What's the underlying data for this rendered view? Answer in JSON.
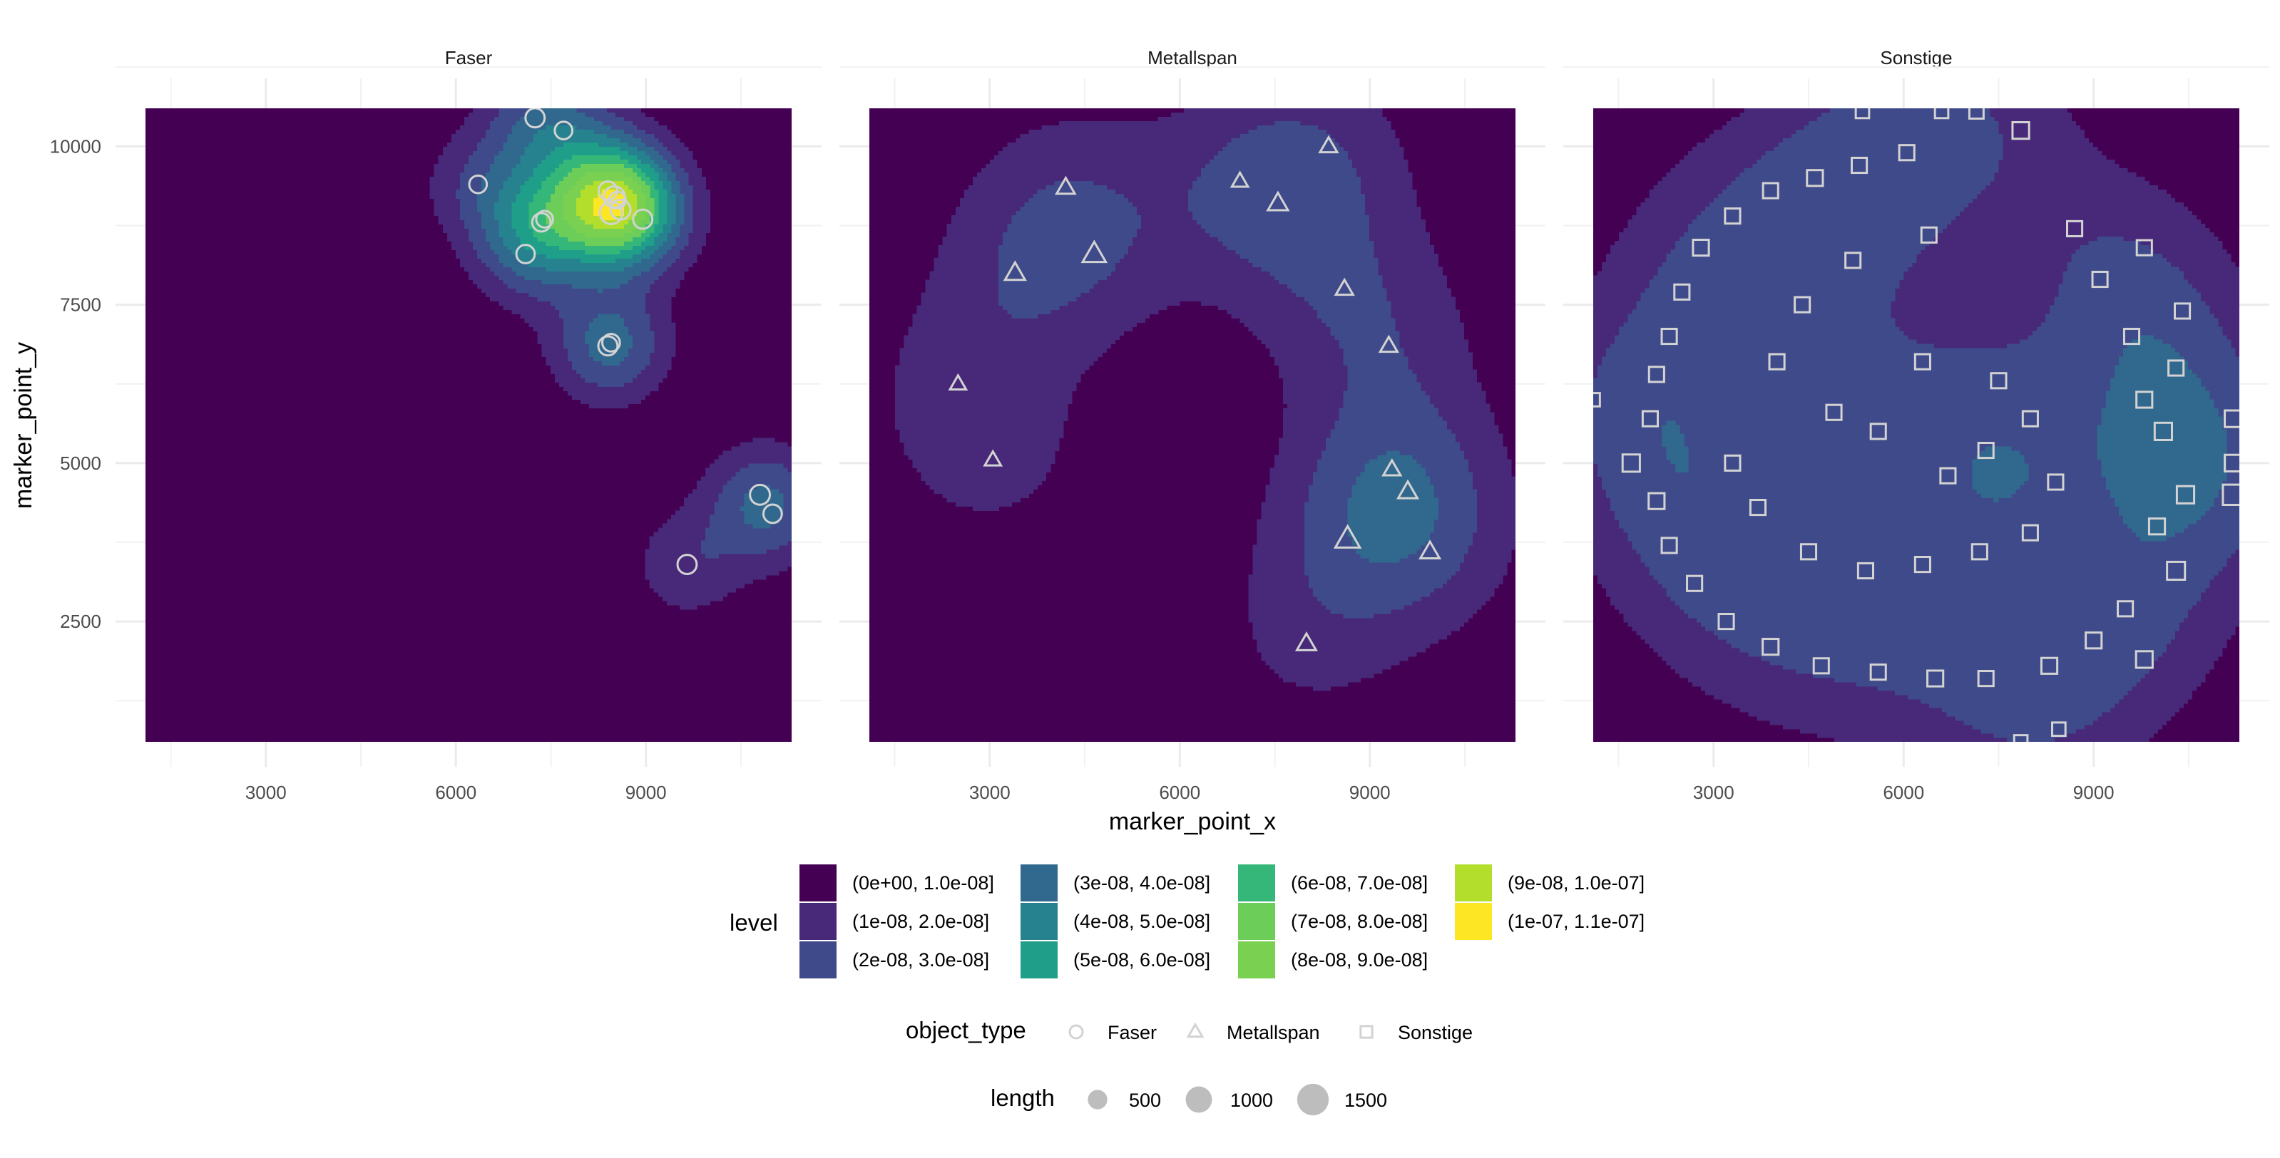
{
  "chart_data": {
    "type": "heatmap",
    "subtype": "faceted 2D density contour (filled) with point overlay",
    "x_label": "marker_point_x",
    "y_label": "marker_point_y",
    "xlim": [
      1100,
      11300
    ],
    "ylim": [
      600,
      10600
    ],
    "x_ticks": [
      3000,
      6000,
      9000
    ],
    "y_ticks": [
      2500,
      5000,
      7500,
      10000
    ],
    "x_tick_labels": [
      "3000",
      "6000",
      "9000"
    ],
    "y_tick_labels": [
      "2500",
      "5000",
      "7500",
      "10000"
    ],
    "grid": "on",
    "facets": [
      "Faser",
      "Metallspan",
      "Sonstige"
    ],
    "fill_legend": {
      "title": "level",
      "levels": [
        {
          "label": "(0e+00, 1.0e-08]",
          "color": "#440154"
        },
        {
          "label": "(1e-08, 2.0e-08]",
          "color": "#482878"
        },
        {
          "label": "(2e-08, 3.0e-08]",
          "color": "#3E4A89"
        },
        {
          "label": "(3e-08, 4.0e-08]",
          "color": "#31688E"
        },
        {
          "label": "(4e-08, 5.0e-08]",
          "color": "#26828E"
        },
        {
          "label": "(5e-08, 6.0e-08]",
          "color": "#1F9E89"
        },
        {
          "label": "(6e-08, 7.0e-08]",
          "color": "#35B779"
        },
        {
          "label": "(7e-08, 8.0e-08]",
          "color": "#6DCD59"
        },
        {
          "label": "(8e-08, 9.0e-08]",
          "color": "#7AD151"
        },
        {
          "label": "(9e-08, 1.0e-07]",
          "color": "#B4DE2C"
        },
        {
          "label": "(1e-07, 1.1e-07]",
          "color": "#FDE725"
        }
      ]
    },
    "shape_legend": {
      "title": "object_type",
      "items": [
        {
          "label": "Faser",
          "shape": "circle"
        },
        {
          "label": "Metallspan",
          "shape": "triangle"
        },
        {
          "label": "Sonstige",
          "shape": "square"
        }
      ]
    },
    "size_legend": {
      "title": "length",
      "items": [
        {
          "label": "500",
          "value": 500
        },
        {
          "label": "1000",
          "value": 1000
        },
        {
          "label": "1500",
          "value": 1500
        }
      ]
    },
    "panels": [
      {
        "facet": "Faser",
        "shape": "circle",
        "points": [
          {
            "x": 7250,
            "y": 10450,
            "length": 1000
          },
          {
            "x": 7700,
            "y": 10250,
            "length": 800
          },
          {
            "x": 6350,
            "y": 9400,
            "length": 800
          },
          {
            "x": 7100,
            "y": 8300,
            "length": 900
          },
          {
            "x": 7350,
            "y": 8800,
            "length": 900
          },
          {
            "x": 7400,
            "y": 8850,
            "length": 700
          },
          {
            "x": 8400,
            "y": 9300,
            "length": 900
          },
          {
            "x": 8500,
            "y": 9200,
            "length": 1300
          },
          {
            "x": 8450,
            "y": 8950,
            "length": 1500
          },
          {
            "x": 8600,
            "y": 9000,
            "length": 1100
          },
          {
            "x": 8550,
            "y": 9150,
            "length": 700
          },
          {
            "x": 8950,
            "y": 8850,
            "length": 1000
          },
          {
            "x": 8400,
            "y": 6850,
            "length": 1000
          },
          {
            "x": 8450,
            "y": 6900,
            "length": 800
          },
          {
            "x": 9650,
            "y": 3400,
            "length": 1000
          },
          {
            "x": 10800,
            "y": 4500,
            "length": 1100
          },
          {
            "x": 11000,
            "y": 4200,
            "length": 900
          }
        ]
      },
      {
        "facet": "Metallspan",
        "shape": "triangle",
        "points": [
          {
            "x": 4200,
            "y": 9350,
            "length": 700
          },
          {
            "x": 3400,
            "y": 8000,
            "length": 900
          },
          {
            "x": 4650,
            "y": 8300,
            "length": 1300
          },
          {
            "x": 2500,
            "y": 6250,
            "length": 500
          },
          {
            "x": 3050,
            "y": 5050,
            "length": 500
          },
          {
            "x": 6950,
            "y": 9450,
            "length": 500
          },
          {
            "x": 7550,
            "y": 9100,
            "length": 900
          },
          {
            "x": 8350,
            "y": 10000,
            "length": 600
          },
          {
            "x": 8600,
            "y": 7750,
            "length": 600
          },
          {
            "x": 9300,
            "y": 6850,
            "length": 600
          },
          {
            "x": 9350,
            "y": 4900,
            "length": 600
          },
          {
            "x": 9600,
            "y": 4550,
            "length": 800
          },
          {
            "x": 8650,
            "y": 3800,
            "length": 1500
          },
          {
            "x": 9950,
            "y": 3600,
            "length": 800
          },
          {
            "x": 8000,
            "y": 2150,
            "length": 800
          }
        ]
      },
      {
        "facet": "Sonstige",
        "shape": "square",
        "note": "several hundred points arranged in a ring centred near (6900, 5500); representative subset listed",
        "points": [
          {
            "x": 5350,
            "y": 10550,
            "length": 500
          },
          {
            "x": 6600,
            "y": 10550,
            "length": 500
          },
          {
            "x": 7150,
            "y": 10550,
            "length": 600
          },
          {
            "x": 7850,
            "y": 10250,
            "length": 900
          },
          {
            "x": 6050,
            "y": 9900,
            "length": 700
          },
          {
            "x": 5300,
            "y": 9700,
            "length": 700
          },
          {
            "x": 4600,
            "y": 9500,
            "length": 800
          },
          {
            "x": 3900,
            "y": 9300,
            "length": 700
          },
          {
            "x": 3300,
            "y": 8900,
            "length": 700
          },
          {
            "x": 2800,
            "y": 8400,
            "length": 800
          },
          {
            "x": 2500,
            "y": 7700,
            "length": 700
          },
          {
            "x": 2300,
            "y": 7000,
            "length": 700
          },
          {
            "x": 2100,
            "y": 6400,
            "length": 700
          },
          {
            "x": 2000,
            "y": 5700,
            "length": 700
          },
          {
            "x": 1700,
            "y": 5000,
            "length": 1000
          },
          {
            "x": 1100,
            "y": 6000,
            "length": 500
          },
          {
            "x": 2100,
            "y": 4400,
            "length": 800
          },
          {
            "x": 2300,
            "y": 3700,
            "length": 700
          },
          {
            "x": 2700,
            "y": 3100,
            "length": 700
          },
          {
            "x": 3200,
            "y": 2500,
            "length": 700
          },
          {
            "x": 3900,
            "y": 2100,
            "length": 800
          },
          {
            "x": 4700,
            "y": 1800,
            "length": 700
          },
          {
            "x": 5600,
            "y": 1700,
            "length": 700
          },
          {
            "x": 6500,
            "y": 1600,
            "length": 800
          },
          {
            "x": 7300,
            "y": 1600,
            "length": 700
          },
          {
            "x": 7850,
            "y": 600,
            "length": 500
          },
          {
            "x": 8450,
            "y": 800,
            "length": 500
          },
          {
            "x": 8300,
            "y": 1800,
            "length": 800
          },
          {
            "x": 9000,
            "y": 2200,
            "length": 800
          },
          {
            "x": 9800,
            "y": 1900,
            "length": 900
          },
          {
            "x": 9500,
            "y": 2700,
            "length": 700
          },
          {
            "x": 10300,
            "y": 3300,
            "length": 1100
          },
          {
            "x": 10000,
            "y": 4000,
            "length": 800
          },
          {
            "x": 10450,
            "y": 4500,
            "length": 1000
          },
          {
            "x": 11200,
            "y": 4500,
            "length": 1500
          },
          {
            "x": 11200,
            "y": 5000,
            "length": 900
          },
          {
            "x": 11200,
            "y": 5700,
            "length": 900
          },
          {
            "x": 10100,
            "y": 5500,
            "length": 1000
          },
          {
            "x": 9800,
            "y": 6000,
            "length": 800
          },
          {
            "x": 10300,
            "y": 6500,
            "length": 700
          },
          {
            "x": 9600,
            "y": 7000,
            "length": 700
          },
          {
            "x": 10400,
            "y": 7400,
            "length": 700
          },
          {
            "x": 9100,
            "y": 7900,
            "length": 700
          },
          {
            "x": 9800,
            "y": 8400,
            "length": 700
          },
          {
            "x": 8700,
            "y": 8700,
            "length": 700
          },
          {
            "x": 6400,
            "y": 8600,
            "length": 700
          },
          {
            "x": 5200,
            "y": 8200,
            "length": 700
          },
          {
            "x": 4400,
            "y": 7500,
            "length": 700
          },
          {
            "x": 4000,
            "y": 6600,
            "length": 700
          },
          {
            "x": 3300,
            "y": 5000,
            "length": 700
          },
          {
            "x": 3700,
            "y": 4300,
            "length": 700
          },
          {
            "x": 4500,
            "y": 3600,
            "length": 700
          },
          {
            "x": 5400,
            "y": 3300,
            "length": 700
          },
          {
            "x": 6300,
            "y": 3400,
            "length": 700
          },
          {
            "x": 7200,
            "y": 3600,
            "length": 700
          },
          {
            "x": 8000,
            "y": 3900,
            "length": 700
          },
          {
            "x": 8400,
            "y": 4700,
            "length": 700
          },
          {
            "x": 8000,
            "y": 5700,
            "length": 700
          },
          {
            "x": 7500,
            "y": 6300,
            "length": 700
          },
          {
            "x": 6300,
            "y": 6600,
            "length": 700
          },
          {
            "x": 5600,
            "y": 5500,
            "length": 700
          },
          {
            "x": 4900,
            "y": 5800,
            "length": 700
          },
          {
            "x": 6700,
            "y": 4800,
            "length": 700
          },
          {
            "x": 7300,
            "y": 5200,
            "length": 700
          }
        ]
      }
    ]
  }
}
